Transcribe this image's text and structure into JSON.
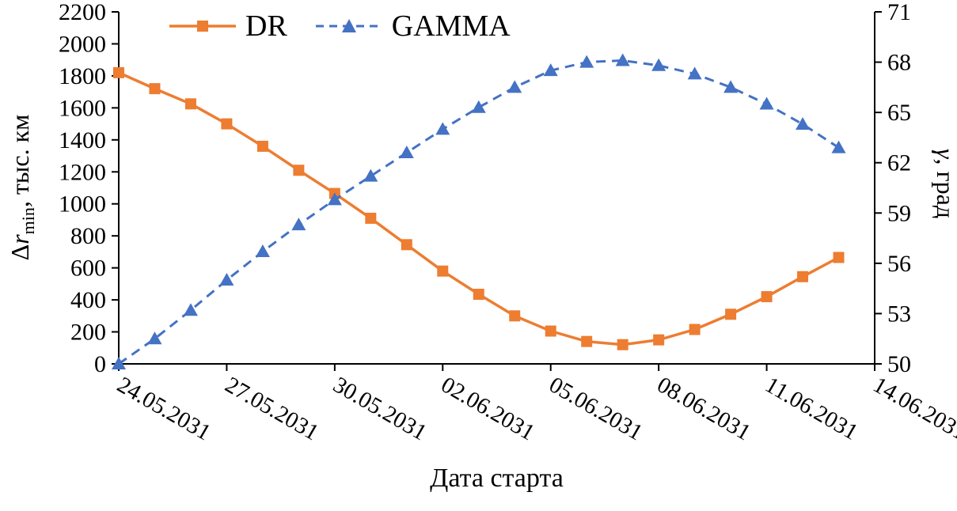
{
  "figure": {
    "background": "#ffffff",
    "axis_color": "#000000"
  },
  "chart_data": {
    "type": "line",
    "title": "",
    "legend": {
      "position": "top",
      "entries": [
        "DR",
        "GAMMA"
      ]
    },
    "x_axis": {
      "title": "Дата старта",
      "tick_labels": [
        "24.05.2031",
        "27.05.2031",
        "30.05.2031",
        "02.06.2031",
        "05.06.2031",
        "08.06.2031",
        "11.06.2031",
        "14.06.2031"
      ],
      "tick_days": [
        0,
        3,
        6,
        9,
        12,
        15,
        18,
        21
      ],
      "range_days": [
        0,
        21
      ]
    },
    "y_axis_left": {
      "label": "Δrmin, тыс. км",
      "title": {
        "prefix": "Δ",
        "variable": "r",
        "subscript": "min",
        "suffix": ", тыс. км"
      },
      "min": 0,
      "max": 2200,
      "ticks": [
        0,
        200,
        400,
        600,
        800,
        1000,
        1200,
        1400,
        1600,
        1800,
        2000,
        2200
      ]
    },
    "y_axis_right": {
      "label": "γ, град",
      "title": {
        "variable": "γ",
        "suffix": ", град"
      },
      "min": 50,
      "max": 71,
      "ticks": [
        50,
        53,
        56,
        59,
        62,
        65,
        68,
        71
      ]
    },
    "categories": [
      "24.05.2031",
      "25.05.2031",
      "26.05.2031",
      "27.05.2031",
      "28.05.2031",
      "29.05.2031",
      "30.05.2031",
      "31.05.2031",
      "01.06.2031",
      "02.06.2031",
      "03.06.2031",
      "04.06.2031",
      "05.06.2031",
      "06.06.2031",
      "07.06.2031",
      "08.06.2031",
      "09.06.2031",
      "10.06.2031",
      "11.06.2031",
      "12.06.2031",
      "13.06.2031"
    ],
    "series": [
      {
        "name": "DR",
        "axis": "left",
        "color": "#ED7D31",
        "line_style": "solid",
        "marker": "square",
        "values": [
          1820,
          1720,
          1625,
          1500,
          1360,
          1210,
          1065,
          910,
          745,
          580,
          435,
          300,
          205,
          140,
          120,
          150,
          215,
          310,
          420,
          545,
          665
        ]
      },
      {
        "name": "GAMMA",
        "axis": "right",
        "color": "#4472C4",
        "line_style": "dashed",
        "marker": "triangle-up",
        "values": [
          50.0,
          51.5,
          53.2,
          55.0,
          56.7,
          58.3,
          59.8,
          61.2,
          62.6,
          64.0,
          65.3,
          66.5,
          67.5,
          68.0,
          68.1,
          67.8,
          67.3,
          66.5,
          65.5,
          64.3,
          62.9
        ]
      }
    ]
  }
}
